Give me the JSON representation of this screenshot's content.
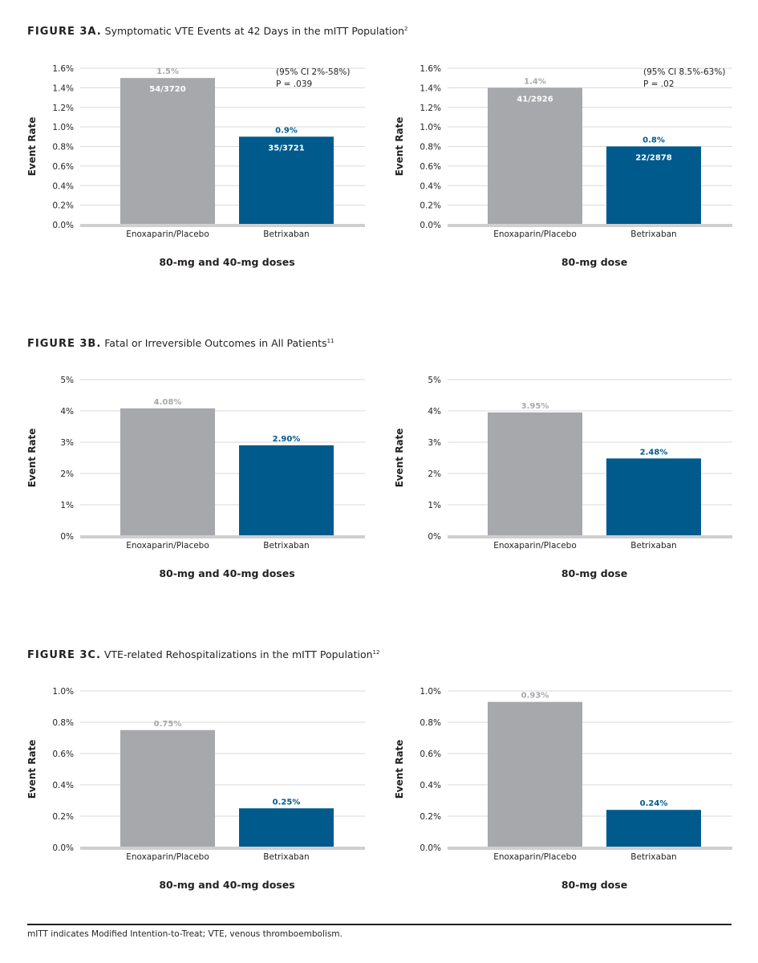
{
  "colors": {
    "placebo": "#a7a8ab",
    "betrixaban": "#005a8c",
    "grid": "#d9d9d9",
    "baseline": "#cfcfd1",
    "text": "#231f20"
  },
  "figures": [
    {
      "label": "FIGURE 3A.",
      "title": "Symptomatic VTE Events at 42 Days in the mITT Population",
      "ref": "2"
    },
    {
      "label": "FIGURE 3B.",
      "title": "Fatal or Irreversible Outcomes in All Patients",
      "ref": "11"
    },
    {
      "label": "FIGURE 3C.",
      "title": "VTE-related Rehospitalizations in the mITT Population",
      "ref": "12"
    }
  ],
  "footnote": "mITT indicates Modified Intention-to-Treat; VTE, venous thromboembolism.",
  "chart_data": [
    {
      "type": "bar",
      "figure": "3A",
      "xlabel": "80-mg and 40-mg doses",
      "ylabel": "Event Rate",
      "categories": [
        "Enoxaparin/Placebo",
        "Betrixaban"
      ],
      "values": [
        1.5,
        0.9
      ],
      "value_labels": [
        "1.5%",
        "0.9%"
      ],
      "inner_labels": [
        "54/3720",
        "35/3721"
      ],
      "ylim": [
        0,
        1.6
      ],
      "yticks": [
        "0.0%",
        "0.2%",
        "0.4%",
        "0.6%",
        "0.8%",
        "1.0%",
        "1.2%",
        "1.4%",
        "1.6%"
      ],
      "annotation": [
        "(95% CI 2%-58%)",
        "P = .039"
      ]
    },
    {
      "type": "bar",
      "figure": "3A",
      "xlabel": "80-mg dose",
      "ylabel": "Event Rate",
      "categories": [
        "Enoxaparin/Placebo",
        "Betrixaban"
      ],
      "values": [
        1.4,
        0.8
      ],
      "value_labels": [
        "1.4%",
        "0.8%"
      ],
      "inner_labels": [
        "41/2926",
        "22/2878"
      ],
      "ylim": [
        0,
        1.6
      ],
      "yticks": [
        "0.0%",
        "0.2%",
        "0.4%",
        "0.6%",
        "0.8%",
        "1.0%",
        "1.2%",
        "1.4%",
        "1.6%"
      ],
      "annotation": [
        "(95% CI 8.5%-63%)",
        "P = .02"
      ]
    },
    {
      "type": "bar",
      "figure": "3B",
      "xlabel": "80-mg and 40-mg doses",
      "ylabel": "Event Rate",
      "categories": [
        "Enoxaparin/Placebo",
        "Betrixaban"
      ],
      "values": [
        4.08,
        2.9
      ],
      "value_labels": [
        "4.08%",
        "2.90%"
      ],
      "inner_labels": [
        "",
        ""
      ],
      "ylim": [
        0,
        5
      ],
      "yticks": [
        "0%",
        "1%",
        "2%",
        "3%",
        "4%",
        "5%"
      ],
      "annotation": []
    },
    {
      "type": "bar",
      "figure": "3B",
      "xlabel": "80-mg dose",
      "ylabel": "Event Rate",
      "categories": [
        "Enoxaparin/Placebo",
        "Betrixaban"
      ],
      "values": [
        3.95,
        2.48
      ],
      "value_labels": [
        "3.95%",
        "2.48%"
      ],
      "inner_labels": [
        "",
        ""
      ],
      "ylim": [
        0,
        5
      ],
      "yticks": [
        "0%",
        "1%",
        "2%",
        "3%",
        "4%",
        "5%"
      ],
      "annotation": []
    },
    {
      "type": "bar",
      "figure": "3C",
      "xlabel": "80-mg and 40-mg doses",
      "ylabel": "Event Rate",
      "categories": [
        "Enoxaparin/Placebo",
        "Betrixaban"
      ],
      "values": [
        0.75,
        0.25
      ],
      "value_labels": [
        "0.75%",
        "0.25%"
      ],
      "inner_labels": [
        "",
        ""
      ],
      "ylim": [
        0,
        1.0
      ],
      "yticks": [
        "0.0%",
        "0.2%",
        "0.4%",
        "0.6%",
        "0.8%",
        "1.0%"
      ],
      "annotation": []
    },
    {
      "type": "bar",
      "figure": "3C",
      "xlabel": "80-mg dose",
      "ylabel": "Event Rate",
      "categories": [
        "Enoxaparin/Placebo",
        "Betrixaban"
      ],
      "values": [
        0.93,
        0.24
      ],
      "value_labels": [
        "0.93%",
        "0.24%"
      ],
      "inner_labels": [
        "",
        ""
      ],
      "ylim": [
        0,
        1.0
      ],
      "yticks": [
        "0.0%",
        "0.2%",
        "0.4%",
        "0.6%",
        "0.8%",
        "1.0%"
      ],
      "annotation": []
    }
  ]
}
